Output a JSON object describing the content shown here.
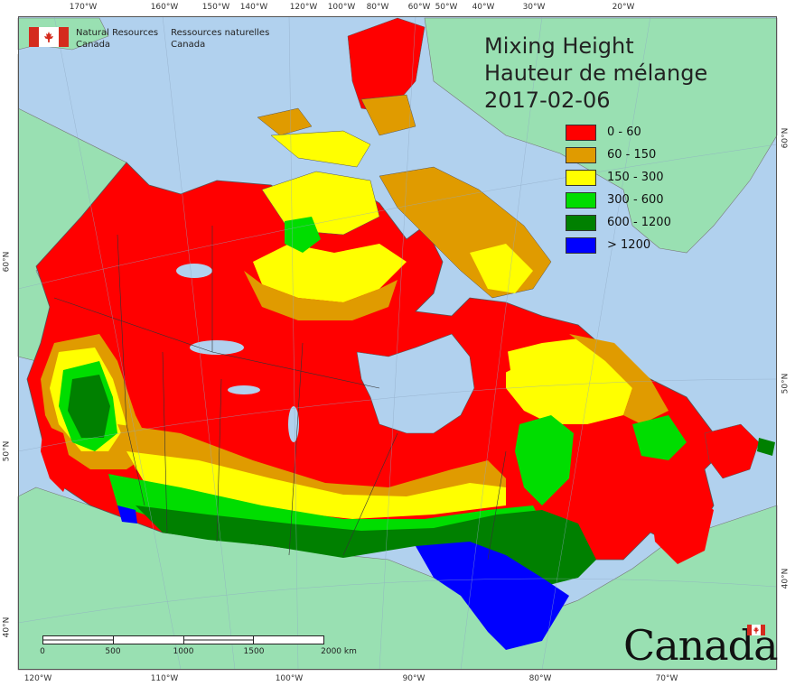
{
  "header": {
    "org_en_line1": "Natural Resources",
    "org_en_line2": "Canada",
    "org_fr_line1": "Ressources naturelles",
    "org_fr_line2": "Canada"
  },
  "title": {
    "line1": "Mixing Height",
    "line2": "Hauteur de mélange",
    "date": "2017-02-06"
  },
  "legend": [
    {
      "label": "0 - 60",
      "color": "#ff0000"
    },
    {
      "label": "60 - 150",
      "color": "#e09b00"
    },
    {
      "label": "150 - 300",
      "color": "#ffff00"
    },
    {
      "label": "300 - 600",
      "color": "#00dd00"
    },
    {
      "label": "600 - 1200",
      "color": "#008000"
    },
    {
      "label": "> 1200",
      "color": "#0000ff"
    }
  ],
  "top_ticks": [
    "170°W",
    "160°W",
    "150°W",
    "140°W",
    "120°W",
    "100°W",
    "80°W",
    "60°W",
    "50°W",
    "40°W",
    "30°W",
    "20°W"
  ],
  "bottom_ticks": [
    "120°W",
    "110°W",
    "100°W",
    "90°W",
    "80°W",
    "70°W"
  ],
  "left_ticks": [
    "60°N",
    "50°N",
    "40°N"
  ],
  "right_ticks": [
    "60°N",
    "50°N",
    "40°N"
  ],
  "scale": {
    "labels": [
      "0",
      "500",
      "1000",
      "1500",
      "2000 km"
    ]
  },
  "wordmark": "Canada",
  "colors": {
    "ocean": "#b1d1ee",
    "land_outside": "#99e0b2",
    "ice": "#dde7f2",
    "lakes": "#b1d1ee"
  }
}
